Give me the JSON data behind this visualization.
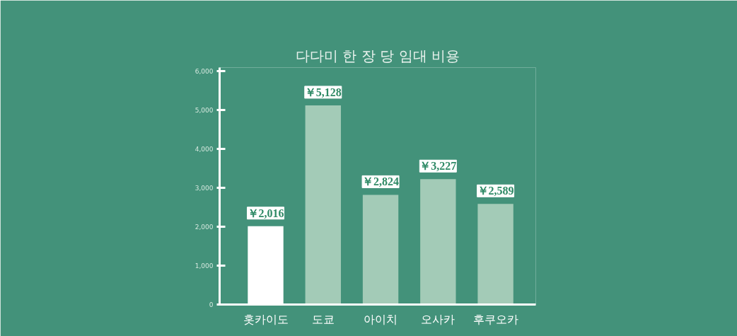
{
  "chart_data": {
    "type": "bar",
    "title": "다다미 한 장 당 임대 비용",
    "categories": [
      "홋카이도",
      "도쿄",
      "아이치",
      "오사카",
      "후쿠오카"
    ],
    "values": [
      2016,
      5128,
      2824,
      3227,
      2589
    ],
    "colors": [
      "#ffffff",
      "#a3cbb7",
      "#a3cbb7",
      "#a3cbb7",
      "#a3cbb7"
    ],
    "value_labels": [
      "￥2,016",
      "￥5,128",
      "￥2,824",
      "￥3,227",
      "￥2,589"
    ],
    "ylim": [
      0,
      6100
    ],
    "yticks": [
      0,
      {
        "value": 1000,
        "label": "1,000"
      },
      {
        "value": 2000,
        "label": "2,000"
      },
      {
        "value": 3000,
        "label": "3,000"
      },
      {
        "value": 4000,
        "label": "4,000"
      },
      {
        "value": 5000,
        "label": "5,000"
      },
      {
        "value": 6000,
        "label": "6,000"
      }
    ],
    "grid": false
  }
}
